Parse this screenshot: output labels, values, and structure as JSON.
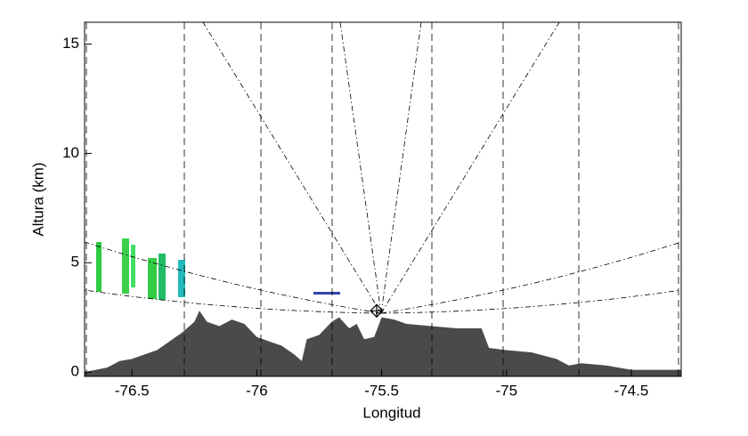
{
  "chart_data": {
    "type": "area",
    "x_label": "Longitud",
    "y_label": "Altura (km)",
    "x": [
      -76.69,
      -76.6,
      -76.55,
      -76.5,
      -76.45,
      -76.4,
      -76.35,
      -76.3,
      -76.25,
      -76.23,
      -76.2,
      -76.15,
      -76.1,
      -76.05,
      -76.0,
      -75.95,
      -75.9,
      -75.85,
      -75.82,
      -75.8,
      -75.75,
      -75.7,
      -75.67,
      -75.63,
      -75.6,
      -75.57,
      -75.53,
      -75.5,
      -75.45,
      -75.4,
      -75.3,
      -75.2,
      -75.1,
      -75.07,
      -75.0,
      -74.9,
      -74.8,
      -74.75,
      -74.7,
      -74.6,
      -74.5,
      -74.3
    ],
    "values": [
      0,
      0.2,
      0.5,
      0.6,
      0.8,
      1.0,
      1.4,
      1.8,
      2.3,
      2.8,
      2.3,
      2.1,
      2.4,
      2.2,
      1.6,
      1.4,
      1.2,
      0.8,
      0.5,
      1.5,
      1.7,
      2.3,
      2.5,
      2.0,
      2.2,
      1.5,
      1.6,
      2.5,
      2.4,
      2.2,
      2.1,
      2.0,
      2.0,
      1.1,
      1.0,
      0.9,
      0.6,
      0.3,
      0.4,
      0.3,
      0.1,
      0.1
    ],
    "color": "#4a4a4a",
    "marker": {
      "x": -75.52,
      "y": 2.8
    },
    "xlim": [
      -76.69,
      -74.3
    ],
    "xticks": [
      -76.5,
      -76.0,
      -75.5,
      -75.0,
      -74.5
    ],
    "ylim": [
      -0.2,
      16
    ],
    "yticks": [
      0,
      5,
      10,
      15
    ]
  }
}
